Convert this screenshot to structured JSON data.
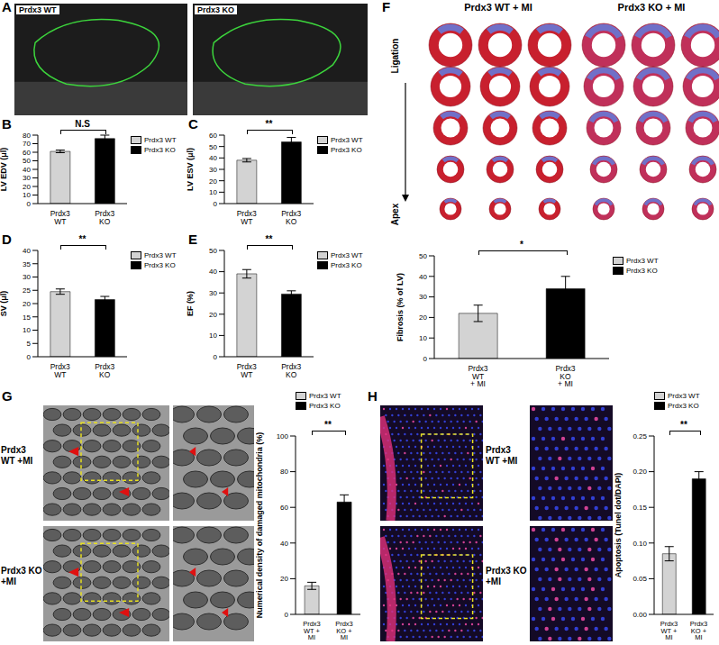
{
  "figure": {
    "A": {
      "panel": "A",
      "labels": [
        "Prdx3 WT",
        "Prdx3 KO"
      ]
    },
    "F": {
      "panel": "F",
      "headers": [
        "Prdx3 WT + MI",
        "Prdx3 KO + MI"
      ],
      "top": "Ligation",
      "bottom": "Apex"
    },
    "G": {
      "panel": "G",
      "rows": [
        "Prdx3 WT +MI",
        "Prdx3 KO +MI"
      ]
    },
    "H": {
      "panel": "H",
      "rows": [
        "Prdx3 WT +MI",
        "Prdx3 KO +MI"
      ]
    }
  },
  "chart_data": [
    {
      "type": "bar",
      "panel": "B",
      "y_label": "LV EDV (μl)",
      "categories": [
        "Prdx3 WT",
        "Prdx3 KO"
      ],
      "series": [
        {
          "name": "Prdx3 WT",
          "color": "#d3d3d3",
          "values": [
            61,
            null
          ],
          "errors": [
            1.5,
            null
          ]
        },
        {
          "name": "Prdx3 KO",
          "color": "#000000",
          "values": [
            null,
            76
          ],
          "errors": [
            null,
            4
          ]
        }
      ],
      "legend": "upper right",
      "annotation": "N.S",
      "ylim": [
        0,
        80
      ],
      "yticks": [
        0,
        10,
        20,
        30,
        40,
        50,
        60,
        70,
        80
      ]
    },
    {
      "type": "bar",
      "panel": "C",
      "y_label": "LV ESV (μl)",
      "categories": [
        "Prdx3 WT",
        "Prdx3 KO"
      ],
      "series": [
        {
          "name": "Prdx3 WT",
          "color": "#d3d3d3",
          "values": [
            38,
            null
          ],
          "errors": [
            1.5,
            null
          ]
        },
        {
          "name": "Prdx3 KO",
          "color": "#000000",
          "values": [
            null,
            54
          ],
          "errors": [
            null,
            4
          ]
        }
      ],
      "legend": "upper right",
      "annotation": "**",
      "ylim": [
        0,
        60
      ],
      "yticks": [
        0,
        10,
        20,
        30,
        40,
        50,
        60
      ]
    },
    {
      "type": "bar",
      "panel": "D",
      "y_label": "SV (μl)",
      "categories": [
        "Prdx3 WT",
        "Prdx3 KO"
      ],
      "series": [
        {
          "name": "Prdx3 WT",
          "color": "#d3d3d3",
          "values": [
            24.5,
            null
          ],
          "errors": [
            1,
            null
          ]
        },
        {
          "name": "Prdx3 KO",
          "color": "#000000",
          "values": [
            null,
            21.5
          ],
          "errors": [
            null,
            1.2
          ]
        }
      ],
      "legend": "upper right",
      "annotation": "**",
      "ylim": [
        0,
        40
      ],
      "yticks": [
        0,
        5,
        10,
        15,
        20,
        25,
        30,
        35,
        40
      ]
    },
    {
      "type": "bar",
      "panel": "E",
      "y_label": "EF (%)",
      "categories": [
        "Prdx3 WT",
        "Prdx3 KO"
      ],
      "series": [
        {
          "name": "Prdx3 WT",
          "color": "#d3d3d3",
          "values": [
            39,
            null
          ],
          "errors": [
            2,
            null
          ]
        },
        {
          "name": "Prdx3 KO",
          "color": "#000000",
          "values": [
            null,
            29.5
          ],
          "errors": [
            null,
            1.5
          ]
        }
      ],
      "legend": "upper right",
      "annotation": "**",
      "ylim": [
        0,
        50
      ],
      "yticks": [
        0,
        10,
        20,
        30,
        40,
        50
      ]
    },
    {
      "type": "bar",
      "y_label": "Fibrosis (% of LV)",
      "categories": [
        "Prdx3 WT + MI",
        "Prdx3 KO + MI"
      ],
      "series": [
        {
          "name": "Prdx3 WT",
          "color": "#d3d3d3",
          "values": [
            22,
            null
          ],
          "errors": [
            4,
            null
          ]
        },
        {
          "name": "Prdx3 KO",
          "color": "#000000",
          "values": [
            null,
            34
          ],
          "errors": [
            null,
            6
          ]
        }
      ],
      "legend": "upper right",
      "annotation": "*",
      "ylim": [
        0,
        50
      ],
      "yticks": [
        0,
        10,
        20,
        30,
        40,
        50
      ]
    },
    {
      "type": "bar",
      "y_label": "Numerical density of damaged mitochondria (%)",
      "categories": [
        "Prdx3 WT + MI",
        "Prdx3 KO + MI"
      ],
      "series": [
        {
          "name": "Prdx3 WT",
          "color": "#d3d3d3",
          "values": [
            16,
            null
          ],
          "errors": [
            2,
            null
          ]
        },
        {
          "name": "Prdx3 KO",
          "color": "#000000",
          "values": [
            null,
            63
          ],
          "errors": [
            null,
            4
          ]
        }
      ],
      "legend": "upper right",
      "annotation": "**",
      "ylim": [
        0,
        100
      ],
      "yticks": [
        0,
        20,
        40,
        60,
        80,
        100
      ]
    },
    {
      "type": "bar",
      "y_label": "Apoptosis (Tunel dot/DAPI)",
      "categories": [
        "Prdx3 WT + MI",
        "Prdx3 KO + MI"
      ],
      "series": [
        {
          "name": "Prdx3 WT",
          "color": "#d3d3d3",
          "values": [
            0.085,
            null
          ],
          "errors": [
            0.01,
            null
          ]
        },
        {
          "name": "Prdx3 KO",
          "color": "#000000",
          "values": [
            null,
            0.19
          ],
          "errors": [
            null,
            0.01
          ]
        }
      ],
      "legend": "upper right",
      "annotation": "**",
      "ylim": [
        0,
        0.25
      ],
      "yticks": [
        {
          "value": 0,
          "label": "0.00"
        },
        {
          "value": 0.05,
          "label": "0.05"
        },
        {
          "value": 0.1,
          "label": "0.10"
        },
        {
          "value": 0.15,
          "label": "0.15"
        },
        {
          "value": 0.2,
          "label": "0.20"
        },
        {
          "value": 0.25,
          "label": "0.25"
        }
      ]
    }
  ]
}
